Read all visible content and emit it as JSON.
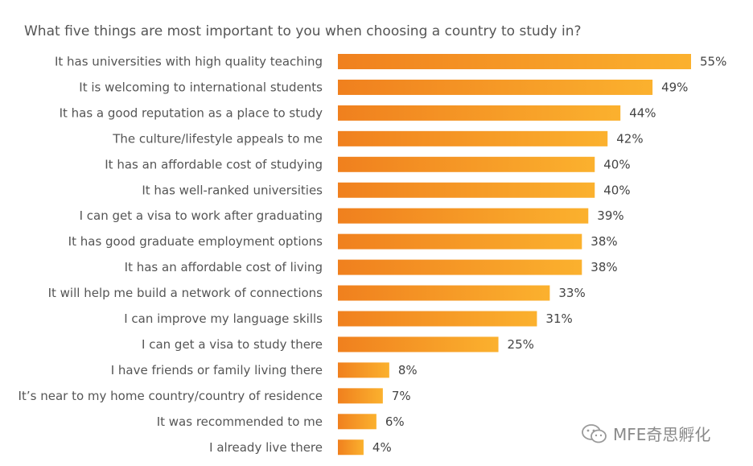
{
  "title": "What five things are most important to you when choosing a country to study in?",
  "colors": {
    "bar_start": "#f0801e",
    "bar_end": "#fbb12e",
    "label": "#555555",
    "value": "#444444"
  },
  "watermark": {
    "text": "MFE奇思孵化",
    "icon": "wechat-icon"
  },
  "chart_data": {
    "type": "bar",
    "orientation": "horizontal",
    "title": "What five things are most important to you when choosing a country to study in?",
    "xlabel": "",
    "ylabel": "",
    "xlim": [
      0,
      55
    ],
    "grid": false,
    "categories": [
      "It has universities with high quality teaching",
      "It is welcoming to international students",
      "It has a good reputation as a place to study",
      "The culture/lifestyle appeals to me",
      "It has an affordable cost of studying",
      "It has well-ranked universities",
      "I can get a visa to work after graduating",
      "It has good graduate employment options",
      "It has an affordable cost of living",
      "It will help me build a network of connections",
      "I can improve my language skills",
      "I can get a visa to study there",
      "I have friends or family living there",
      "It’s near to my home country/country of residence",
      "It was recommended to me",
      "I already live there"
    ],
    "values": [
      55,
      49,
      44,
      42,
      40,
      40,
      39,
      38,
      38,
      33,
      31,
      25,
      8,
      7,
      6,
      4
    ],
    "value_labels": [
      "55%",
      "49%",
      "44%",
      "42%",
      "40%",
      "40%",
      "39%",
      "38%",
      "38%",
      "33%",
      "31%",
      "25%",
      "8%",
      "7%",
      "6%",
      "4%"
    ]
  }
}
